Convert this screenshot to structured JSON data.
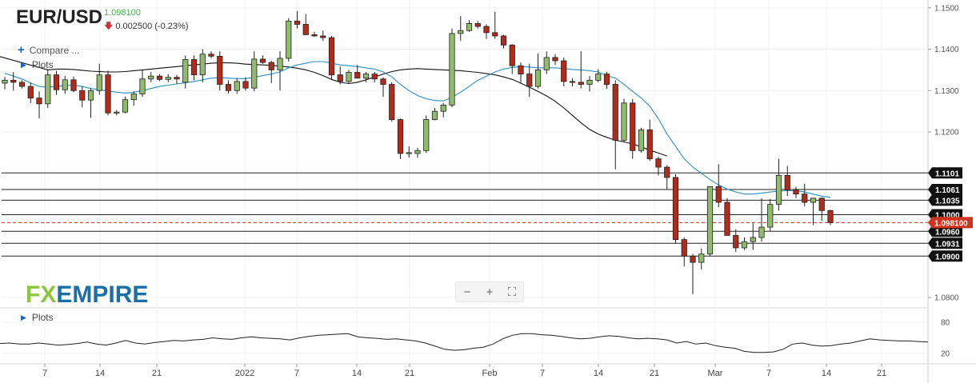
{
  "header": {
    "symbol": "EUR/USD",
    "last_price": "1.098100",
    "change": "0.002500 (-0.23%)",
    "compare_label": "Compare ...",
    "plots_label": "Plots"
  },
  "logo": {
    "fx": "FX",
    "empire": "EMPIRE"
  },
  "toolbar": {
    "zoom_out": "−",
    "zoom_in": "+",
    "fullscreen": "⛶"
  },
  "indicator": {
    "plots_label": "Plots",
    "levels": [
      "80",
      "20"
    ]
  },
  "colors": {
    "up": "#8fbc6a",
    "down": "#b22a1a",
    "ma_fast": "#2b8cc4",
    "ma_slow": "#111111",
    "current": "#d0321e"
  },
  "chart_data": {
    "type": "candlestick",
    "x_ticks": [
      "7",
      "14",
      "21",
      "2022",
      "7",
      "14",
      "21",
      "Feb",
      "7",
      "14",
      "21",
      "Mar",
      "7",
      "14",
      "21"
    ],
    "y_ticks": [
      "1.1500",
      "1.1400",
      "1.1300",
      "1.1200",
      "1.0800"
    ],
    "ylim": [
      1.0775,
      1.1515
    ],
    "current_price": "1.098100",
    "levels": [
      {
        "value": 1.1101,
        "label": "1.1101"
      },
      {
        "value": 1.1061,
        "label": "1.1061"
      },
      {
        "value": 1.1035,
        "label": "1.1035"
      },
      {
        "value": 1.1,
        "label": "1.1000"
      },
      {
        "value": 1.096,
        "label": "1.0960"
      },
      {
        "value": 1.0931,
        "label": "1.0931"
      },
      {
        "value": 1.09,
        "label": "1.0900"
      }
    ],
    "candles": [
      [
        1.1318,
        1.1333,
        1.1303,
        1.1325
      ],
      [
        1.1325,
        1.1345,
        1.13,
        1.132
      ],
      [
        1.132,
        1.1325,
        1.1305,
        1.131
      ],
      [
        1.131,
        1.132,
        1.127,
        1.1282
      ],
      [
        1.1282,
        1.1298,
        1.1233,
        1.1268
      ],
      [
        1.1268,
        1.1352,
        1.1258,
        1.1338
      ],
      [
        1.1338,
        1.1348,
        1.129,
        1.1302
      ],
      [
        1.1302,
        1.1335,
        1.1292,
        1.1326
      ],
      [
        1.1326,
        1.1334,
        1.1296,
        1.13
      ],
      [
        1.13,
        1.131,
        1.126,
        1.1277
      ],
      [
        1.1277,
        1.1305,
        1.1234,
        1.13
      ],
      [
        1.13,
        1.1365,
        1.129,
        1.1338
      ],
      [
        1.1338,
        1.1348,
        1.124,
        1.1246
      ],
      [
        1.1246,
        1.1253,
        1.124,
        1.1248
      ],
      [
        1.1248,
        1.1285,
        1.1245,
        1.1278
      ],
      [
        1.1278,
        1.1298,
        1.1263,
        1.1292
      ],
      [
        1.1292,
        1.135,
        1.1285,
        1.1328
      ],
      [
        1.1328,
        1.1345,
        1.132,
        1.1335
      ],
      [
        1.1335,
        1.134,
        1.1323,
        1.1327
      ],
      [
        1.1327,
        1.134,
        1.132,
        1.1332
      ],
      [
        1.1332,
        1.1338,
        1.1316,
        1.1328
      ],
      [
        1.132,
        1.1385,
        1.1305,
        1.1375
      ],
      [
        1.1375,
        1.1385,
        1.1325,
        1.1338
      ],
      [
        1.1338,
        1.14,
        1.132,
        1.1388
      ],
      [
        1.1388,
        1.1395,
        1.1378,
        1.1383
      ],
      [
        1.1383,
        1.1395,
        1.13,
        1.1315
      ],
      [
        1.1315,
        1.1325,
        1.1293,
        1.13
      ],
      [
        1.13,
        1.133,
        1.1292,
        1.1322
      ],
      [
        1.1322,
        1.1332,
        1.13,
        1.1306
      ],
      [
        1.1306,
        1.1395,
        1.1298,
        1.1376
      ],
      [
        1.1376,
        1.1385,
        1.1365,
        1.1368
      ],
      [
        1.1368,
        1.1372,
        1.1318,
        1.135
      ],
      [
        1.135,
        1.1395,
        1.13,
        1.1378
      ],
      [
        1.1378,
        1.1475,
        1.137,
        1.1468
      ],
      [
        1.1468,
        1.1492,
        1.145,
        1.146
      ],
      [
        1.146,
        1.1485,
        1.1435,
        1.1435
      ],
      [
        1.1435,
        1.1442,
        1.143,
        1.1432
      ],
      [
        1.1432,
        1.1445,
        1.142,
        1.1428
      ],
      [
        1.1428,
        1.1432,
        1.1325,
        1.1338
      ],
      [
        1.1338,
        1.1358,
        1.1315,
        1.1322
      ],
      [
        1.1322,
        1.135,
        1.1318,
        1.1344
      ],
      [
        1.1344,
        1.1362,
        1.133,
        1.133
      ],
      [
        1.133,
        1.1345,
        1.132,
        1.134
      ],
      [
        1.134,
        1.1345,
        1.132,
        1.1328
      ],
      [
        1.1328,
        1.1332,
        1.1285,
        1.1315
      ],
      [
        1.1315,
        1.132,
        1.1225,
        1.123
      ],
      [
        1.123,
        1.1232,
        1.1135,
        1.1148
      ],
      [
        1.1148,
        1.1165,
        1.1138,
        1.115
      ],
      [
        1.1148,
        1.1162,
        1.1138,
        1.1155
      ],
      [
        1.1155,
        1.124,
        1.115,
        1.123
      ],
      [
        1.123,
        1.1258,
        1.1228,
        1.125
      ],
      [
        1.125,
        1.127,
        1.1235,
        1.1265
      ],
      [
        1.1265,
        1.145,
        1.126,
        1.1438
      ],
      [
        1.1438,
        1.148,
        1.142,
        1.1445
      ],
      [
        1.1445,
        1.147,
        1.1442,
        1.1462
      ],
      [
        1.1462,
        1.1468,
        1.145,
        1.1455
      ],
      [
        1.1455,
        1.146,
        1.1425,
        1.144
      ],
      [
        1.144,
        1.149,
        1.1425,
        1.1432
      ],
      [
        1.1432,
        1.1435,
        1.1402,
        1.141
      ],
      [
        1.141,
        1.1412,
        1.134,
        1.136
      ],
      [
        1.136,
        1.1368,
        1.1318,
        1.134
      ],
      [
        1.134,
        1.1365,
        1.1285,
        1.131
      ],
      [
        1.131,
        1.139,
        1.1305,
        1.135
      ],
      [
        1.135,
        1.1395,
        1.134,
        1.138
      ],
      [
        1.138,
        1.1388,
        1.1362,
        1.1372
      ],
      [
        1.1372,
        1.138,
        1.131,
        1.1322
      ],
      [
        1.1322,
        1.133,
        1.131,
        1.132
      ],
      [
        1.132,
        1.1395,
        1.1305,
        1.1315
      ],
      [
        1.1315,
        1.1335,
        1.1298,
        1.1325
      ],
      [
        1.1325,
        1.1352,
        1.132,
        1.134
      ],
      [
        1.134,
        1.1345,
        1.1305,
        1.1315
      ],
      [
        1.1315,
        1.1325,
        1.111,
        1.118
      ],
      [
        1.118,
        1.128,
        1.1175,
        1.127
      ],
      [
        1.127,
        1.128,
        1.1135,
        1.1155
      ],
      [
        1.1155,
        1.121,
        1.115,
        1.1205
      ],
      [
        1.1205,
        1.123,
        1.113,
        1.1135
      ],
      [
        1.1135,
        1.114,
        1.1095,
        1.1115
      ],
      [
        1.1115,
        1.112,
        1.106,
        1.109
      ],
      [
        1.109,
        1.1098,
        1.093,
        1.094
      ],
      [
        1.094,
        1.0945,
        1.0875,
        1.09
      ],
      [
        1.09,
        1.0905,
        1.0808,
        1.0885
      ],
      [
        1.0885,
        1.0918,
        1.0868,
        1.0905
      ],
      [
        1.0905,
        1.1068,
        1.09,
        1.1068
      ],
      [
        1.1068,
        1.1122,
        1.1018,
        1.103
      ],
      [
        1.103,
        1.104,
        1.0955,
        1.095
      ],
      [
        1.095,
        1.0965,
        1.091,
        1.092
      ],
      [
        1.092,
        1.0945,
        1.0915,
        1.0935
      ],
      [
        1.0935,
        1.098,
        1.0915,
        1.0945
      ],
      [
        1.0945,
        1.104,
        1.0935,
        1.097
      ],
      [
        1.097,
        1.1038,
        1.096,
        1.1025
      ],
      [
        1.1025,
        1.1135,
        1.101,
        1.1095
      ],
      [
        1.1095,
        1.1118,
        1.1045,
        1.106
      ],
      [
        1.106,
        1.1068,
        1.104,
        1.105
      ],
      [
        1.105,
        1.1075,
        1.102,
        1.103
      ],
      [
        1.103,
        1.104,
        1.0975,
        1.104
      ],
      [
        1.104,
        1.1042,
        1.0985,
        1.101
      ],
      [
        1.101,
        1.1012,
        1.0975,
        1.0981
      ]
    ],
    "ma_fast": [
      1.1342,
      1.1335,
      1.1328,
      1.1318,
      1.131,
      1.1308,
      1.131,
      1.1312,
      1.1313,
      1.131,
      1.1305,
      1.1302,
      1.1299,
      1.1296,
      1.1294,
      1.1296,
      1.13,
      1.1305,
      1.131,
      1.1313,
      1.1316,
      1.1319,
      1.1322,
      1.1326,
      1.133,
      1.1331,
      1.133,
      1.1329,
      1.1329,
      1.1332,
      1.1336,
      1.134,
      1.1345,
      1.1355,
      1.1362,
      1.1366,
      1.137,
      1.137,
      1.1366,
      1.1362,
      1.136,
      1.1358,
      1.1355,
      1.1352,
      1.1345,
      1.1333,
      1.1315,
      1.13,
      1.1288,
      1.128,
      1.1276,
      1.1275,
      1.1284,
      1.1296,
      1.131,
      1.1325,
      1.1335,
      1.1345,
      1.1352,
      1.1356,
      1.1358,
      1.1357,
      1.1355,
      1.1355,
      1.1355,
      1.1353,
      1.1351,
      1.135,
      1.1348,
      1.1345,
      1.1336,
      1.133,
      1.1315,
      1.1298,
      1.1282,
      1.1262,
      1.1232,
      1.1195,
      1.1165,
      1.1135,
      1.1115,
      1.11,
      1.1085,
      1.1072,
      1.1062,
      1.1055,
      1.105,
      1.105,
      1.1052,
      1.1055,
      1.1057,
      1.1058,
      1.1058,
      1.1055,
      1.105,
      1.1045,
      1.1042
    ],
    "ma_slow_start_index": 5,
    "ma_slow": [
      1.135,
      1.1352,
      1.1352,
      1.1351,
      1.1349,
      1.1347,
      1.1346,
      1.1345,
      1.1345,
      1.1346,
      1.1348,
      1.135,
      1.1352,
      1.1354,
      1.1356,
      1.1358,
      1.136,
      1.1362,
      1.1364,
      1.1366,
      1.1367,
      1.1367,
      1.1366,
      1.1364,
      1.1363,
      1.1362,
      1.1361,
      1.1359,
      1.1357,
      1.1354,
      1.135,
      1.1344,
      1.1336,
      1.1327,
      1.132,
      1.1317,
      1.132,
      1.1326,
      1.1333,
      1.134,
      1.1346,
      1.135,
      1.1352,
      1.1353,
      1.1352,
      1.1351,
      1.135,
      1.1349,
      1.1348,
      1.1346,
      1.1344,
      1.1341,
      1.1338,
      1.1333,
      1.1327,
      1.1318,
      1.1308,
      1.1298,
      1.1287,
      1.1274,
      1.1258,
      1.124,
      1.1222,
      1.1206,
      1.1195,
      1.1187,
      1.118,
      1.1176,
      1.1171,
      1.1164,
      1.1156,
      1.1149,
      1.1142
    ],
    "oscillator": [
      39,
      40,
      38,
      38,
      40,
      38,
      36,
      37,
      39,
      42,
      38,
      36,
      40,
      45,
      40,
      38,
      41,
      43,
      45,
      44,
      46,
      47,
      50,
      48,
      47,
      50,
      52,
      50,
      49,
      48,
      46,
      50,
      53,
      55,
      56,
      57,
      58,
      52,
      50,
      49,
      47,
      48,
      46,
      44,
      40,
      34,
      28,
      26,
      27,
      30,
      32,
      38,
      48,
      55,
      58,
      58,
      56,
      55,
      53,
      50,
      48,
      49,
      52,
      54,
      53,
      50,
      48,
      49,
      48,
      46,
      40,
      43,
      38,
      40,
      35,
      32,
      30,
      24,
      22,
      22,
      23,
      28,
      38,
      40,
      36,
      34,
      35,
      38,
      40,
      44,
      48,
      46,
      45,
      44,
      44,
      43,
      42
    ],
    "oscillator_range": [
      0,
      100
    ]
  }
}
